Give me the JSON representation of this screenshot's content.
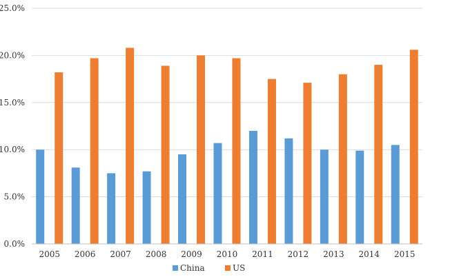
{
  "chart_data": {
    "type": "bar",
    "categories": [
      "2005",
      "2006",
      "2007",
      "2008",
      "2009",
      "2010",
      "2011",
      "2012",
      "2013",
      "2014",
      "2015"
    ],
    "series": [
      {
        "name": "China",
        "values": [
          10.0,
          8.1,
          7.5,
          7.7,
          9.5,
          10.7,
          12.0,
          11.2,
          10.0,
          9.9,
          10.5
        ]
      },
      {
        "name": "US",
        "values": [
          18.2,
          19.7,
          20.8,
          18.9,
          20.0,
          19.7,
          17.5,
          17.1,
          18.0,
          19.0,
          20.6
        ]
      }
    ],
    "colors": [
      "#5b9bd5",
      "#ed7d31"
    ],
    "ylim": [
      0,
      25
    ],
    "yticks": [
      0,
      5,
      10,
      15,
      20,
      25
    ],
    "ytick_labels": [
      "0.0%",
      "5.0%",
      "10.0%",
      "15.0%",
      "20.0%",
      "25.0%"
    ],
    "grid": true,
    "legend": "bottom-center"
  }
}
